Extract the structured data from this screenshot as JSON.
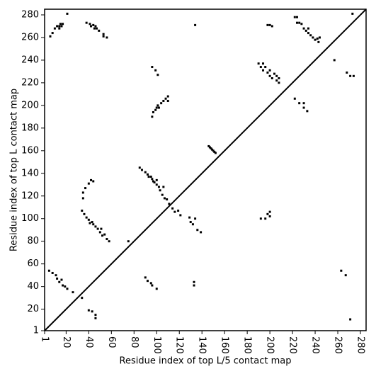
{
  "chart_data": {
    "type": "scatter",
    "x_label": "Residue index of top L/5 contact map",
    "y_label": "Residue index of top L contact map",
    "color": "#000000",
    "xlim": [
      1,
      285
    ],
    "ylim": [
      1,
      285
    ],
    "xticks": [
      1,
      20,
      40,
      60,
      80,
      100,
      120,
      140,
      160,
      180,
      200,
      220,
      240,
      260,
      280
    ],
    "yticks": [
      1,
      20,
      40,
      60,
      80,
      100,
      120,
      140,
      160,
      180,
      200,
      220,
      240,
      260,
      280
    ],
    "x": [
      6,
      8,
      10,
      12,
      14,
      14,
      15,
      16,
      17,
      21,
      38,
      41,
      42,
      44,
      45,
      46,
      47,
      49,
      53,
      53,
      56,
      134,
      198,
      200,
      202,
      222,
      224,
      224,
      226,
      228,
      230,
      232,
      234,
      234,
      236,
      238,
      240,
      242,
      243,
      244,
      257,
      273,
      190,
      192,
      194,
      194,
      196,
      198,
      200,
      200,
      202,
      204,
      206,
      206,
      208,
      208,
      268,
      271,
      274,
      96,
      99,
      101,
      96,
      97,
      99,
      100,
      101,
      102,
      104,
      106,
      108,
      110,
      110,
      146,
      147,
      148,
      149,
      150,
      151,
      152,
      222,
      226,
      230,
      230,
      233,
      85,
      87,
      90,
      92,
      93,
      95,
      96,
      97,
      98,
      100,
      100,
      102,
      103,
      105,
      106,
      107,
      109,
      111,
      114,
      116,
      119,
      121,
      129,
      130,
      132,
      134,
      136,
      139,
      35,
      35,
      37,
      40,
      42,
      44,
      34,
      36,
      38,
      40,
      41,
      43,
      44,
      46,
      48,
      50,
      51,
      52,
      54,
      56,
      58,
      75,
      192,
      196,
      198,
      200,
      200,
      5,
      8,
      11,
      12,
      14,
      16,
      17,
      19,
      21,
      26,
      34,
      40,
      43,
      46,
      46,
      90,
      92,
      95,
      96,
      100,
      133,
      133,
      263,
      267,
      271
    ],
    "values": [
      261,
      264,
      268,
      270,
      270,
      268,
      272,
      270,
      272,
      281,
      273,
      272,
      270,
      271,
      268,
      270,
      268,
      266,
      263,
      261,
      260,
      271,
      271,
      271,
      270,
      278,
      278,
      273,
      273,
      272,
      268,
      266,
      264,
      268,
      262,
      260,
      258,
      259,
      256,
      260,
      240,
      281,
      237,
      234,
      231,
      237,
      234,
      229,
      226,
      231,
      224,
      228,
      222,
      226,
      224,
      220,
      229,
      226,
      226,
      234,
      231,
      227,
      190,
      194,
      196,
      198,
      200,
      198,
      202,
      204,
      206,
      204,
      208,
      164,
      163,
      162,
      161,
      160,
      159,
      158,
      206,
      202,
      202,
      198,
      195,
      145,
      143,
      141,
      139,
      137,
      137,
      135,
      133,
      132,
      130,
      134,
      128,
      125,
      121,
      128,
      118,
      117,
      113,
      109,
      106,
      107,
      103,
      101,
      97,
      95,
      100,
      90,
      88,
      123,
      118,
      127,
      131,
      134,
      133,
      107,
      104,
      101,
      99,
      96,
      97,
      95,
      93,
      91,
      88,
      91,
      85,
      86,
      82,
      80,
      80,
      100,
      100,
      104,
      102,
      106,
      54,
      52,
      50,
      47,
      44,
      46,
      41,
      40,
      38,
      35,
      30,
      19,
      18,
      15,
      12,
      48,
      45,
      43,
      41,
      38,
      44,
      41,
      54,
      50,
      11
    ]
  }
}
